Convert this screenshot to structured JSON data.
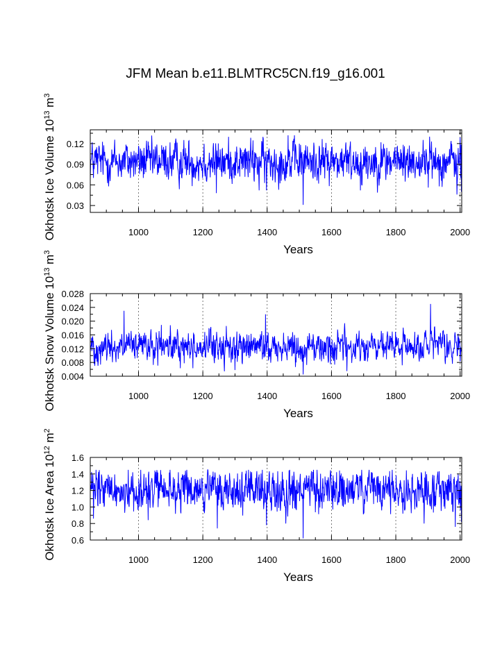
{
  "chart_data": [
    {
      "type": "line",
      "title": "JFM Mean b.e11.BLMTRC5CN.f19_g16.001",
      "xlabel": "Years",
      "ylabel_parts": [
        "Okhotsk Ice Volume 10",
        "13",
        " m",
        "3"
      ],
      "xlim": [
        850,
        2005
      ],
      "ylim": [
        0.02,
        0.14
      ],
      "xticks": [
        "1000",
        "1200",
        "1400",
        "1600",
        "1800",
        "2000"
      ],
      "xtick_values": [
        1000,
        1200,
        1400,
        1600,
        1800,
        2000
      ],
      "yticks": [
        "0.03",
        "0.06",
        "0.09",
        "0.12"
      ],
      "ytick_values": [
        0.03,
        0.06,
        0.09,
        0.12
      ],
      "grid": "vertical dashed at major x ticks",
      "series": [
        {
          "name": "Okhotsk Ice Volume",
          "color": "#0000ff",
          "x_start": 850,
          "x_end": 2005,
          "mean": 0.094,
          "spread": 0.014,
          "min": 0.03,
          "max": 0.132,
          "spikes": [
            [
              1512,
              0.031
            ],
            [
              1398,
              0.052
            ],
            [
              1242,
              0.048
            ],
            [
              1990,
              0.046
            ],
            [
              2004,
              0.05
            ],
            [
              1905,
              0.13
            ],
            [
              1465,
              0.132
            ],
            [
              1375,
              0.052
            ],
            [
              1690,
              0.052
            ]
          ]
        }
      ]
    },
    {
      "type": "line",
      "xlabel": "Years",
      "ylabel_parts": [
        "Okhotsk Snow Volume 10",
        "13",
        " m",
        "3"
      ],
      "xlim": [
        850,
        2005
      ],
      "ylim": [
        0.004,
        0.028
      ],
      "xticks": [
        "1000",
        "1200",
        "1400",
        "1600",
        "1800",
        "2000"
      ],
      "xtick_values": [
        1000,
        1200,
        1400,
        1600,
        1800,
        2000
      ],
      "yticks": [
        "0.004",
        "0.008",
        "0.012",
        "0.016",
        "0.020",
        "0.024",
        "0.028"
      ],
      "ytick_values": [
        0.004,
        0.008,
        0.012,
        0.016,
        0.02,
        0.024,
        0.028
      ],
      "grid": "vertical dashed at major x ticks",
      "series": [
        {
          "name": "Okhotsk Snow Volume",
          "color": "#0000ff",
          "x_start": 850,
          "x_end": 2005,
          "mean": 0.0125,
          "spread": 0.0022,
          "min": 0.0045,
          "max": 0.025,
          "spikes": [
            [
              1908,
              0.025
            ],
            [
              1395,
              0.022
            ],
            [
              955,
              0.023
            ],
            [
              1512,
              0.0045
            ],
            [
              1648,
              0.0055
            ],
            [
              1300,
              0.0058
            ]
          ]
        }
      ]
    },
    {
      "type": "line",
      "xlabel": "Years",
      "ylabel_parts": [
        "Okhotsk Ice Area 10",
        "12",
        " m",
        "2"
      ],
      "xlim": [
        850,
        2005
      ],
      "ylim": [
        0.6,
        1.6
      ],
      "xticks": [
        "1000",
        "1200",
        "1400",
        "1600",
        "1800",
        "2000"
      ],
      "xtick_values": [
        1000,
        1200,
        1400,
        1600,
        1800,
        2000
      ],
      "yticks": [
        "0.6",
        "0.8",
        "1.0",
        "1.2",
        "1.4",
        "1.6"
      ],
      "ytick_values": [
        0.6,
        0.8,
        1.0,
        1.2,
        1.4,
        1.6
      ],
      "grid": "vertical dashed at major x ticks",
      "series": [
        {
          "name": "Okhotsk Ice Area",
          "color": "#0000ff",
          "x_start": 850,
          "x_end": 2005,
          "mean": 1.2,
          "spread": 0.12,
          "min": 0.62,
          "max": 1.45,
          "spikes": [
            [
              1512,
              0.62
            ],
            [
              1398,
              0.78
            ],
            [
              860,
              0.86
            ],
            [
              1245,
              0.74
            ],
            [
              1888,
              0.8
            ],
            [
              1985,
              0.76
            ],
            [
              2004,
              0.82
            ],
            [
              1458,
              0.8
            ],
            [
              1030,
              0.84
            ]
          ]
        }
      ]
    }
  ]
}
